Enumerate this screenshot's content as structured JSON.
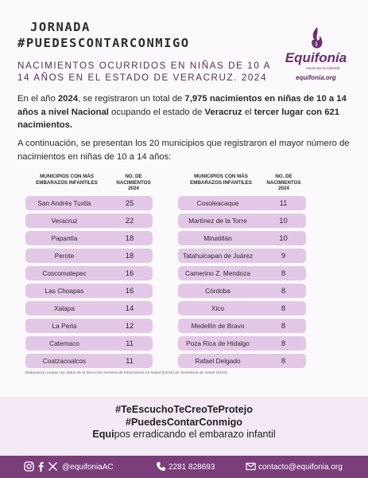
{
  "header": {
    "title_line1": "JORNADA",
    "title_line2": "#PUEDESCONTARCONMIGO",
    "subtitle": "NACIMIENTOS OCURRIDOS EN NIÑAS DE 10 A 14 AÑOS EN EL ESTADO DE VERACRUZ. 2024"
  },
  "logo": {
    "name": "Equifonía",
    "tagline": "Voces por la Libertad",
    "site": "equifonia.org",
    "color": "#6a2d72"
  },
  "intro": {
    "a": "En el año ",
    "b": "2024",
    "c": ", se registraron un total de ",
    "d": "7,975 nacimientos en niñas de 10 a 14 años a nivel Nacional",
    "e": " ocupando el estado de ",
    "f": "Veracruz",
    "g": " el ",
    "h": "tercer lugar con 621 nacimientos."
  },
  "intro2": "A continuación, se presentan los 20 municipios que registraron el mayor número de nacimientos en niñas de 10 a 14 años:",
  "table_headers": {
    "municipios": "MUNICIPIOS CON MÁS EMBARAZOS INFANTILES",
    "nacimientos": "NO. DE NACIMIENTOS 2024"
  },
  "left_rows": [
    {
      "name": "San Andrés Tuxtla",
      "value": "25"
    },
    {
      "name": "Veracruz",
      "value": "22"
    },
    {
      "name": "Papantla",
      "value": "18"
    },
    {
      "name": "Perote",
      "value": "18"
    },
    {
      "name": "Coscomatepec",
      "value": "16"
    },
    {
      "name": "Las Choapas",
      "value": "16"
    },
    {
      "name": "Xalapa",
      "value": "14"
    },
    {
      "name": "La Perla",
      "value": "12"
    },
    {
      "name": "Catemaco",
      "value": "11"
    },
    {
      "name": "Coatzacoalcos",
      "value": "11"
    }
  ],
  "right_rows": [
    {
      "name": "Cosoleacaque",
      "value": "11"
    },
    {
      "name": "Martínez de la Torre",
      "value": "10"
    },
    {
      "name": "Minatitlán",
      "value": "10"
    },
    {
      "name": "Tatahuicapan de Juárez",
      "value": "9"
    },
    {
      "name": "Camerino Z. Mendoza",
      "value": "8"
    },
    {
      "name": "Córdoba",
      "value": "8"
    },
    {
      "name": "Xico",
      "value": "8"
    },
    {
      "name": "Medellín de Bravo",
      "value": "8"
    },
    {
      "name": "Poza Rica de Hidalgo",
      "value": "8"
    },
    {
      "name": "Rafael Delgado",
      "value": "8"
    }
  ],
  "source": "Elaboración propia con datos de la Dirección General de Información en Salud (DGIS) de Secretaría de Salud (2024).",
  "hashtags": {
    "line1": "#TeEscuchoTeCreoTeProtejo",
    "line2": "#PuedesContarConmigo",
    "line3_bold": "Equi",
    "line3_rest": "pos erradicando el embarazo infantil"
  },
  "footer": {
    "handle": "@equifoniaAC",
    "phone": "2281 828693",
    "email": "contacto@equifonia.org",
    "icons": [
      "instagram-icon",
      "facebook-icon",
      "x-icon",
      "phone-icon",
      "mail-icon"
    ]
  },
  "colors": {
    "accent": "#7b3e7b",
    "row_fill": "#e3c7e6",
    "band": "#f3e9f4"
  }
}
